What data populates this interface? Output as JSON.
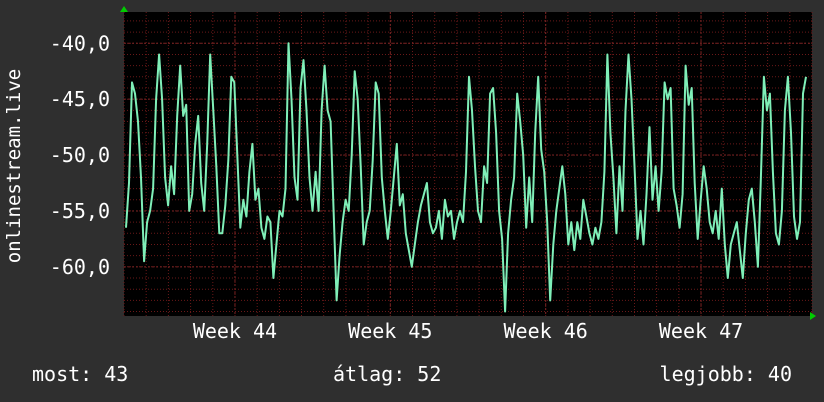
{
  "chart_data": {
    "type": "line",
    "title": "",
    "ylabel": "onlinestream.live",
    "xlabel": "",
    "x_ticks": [
      "Week 44",
      "Week 45",
      "Week 46",
      "Week 47"
    ],
    "y_ticks": [
      "-40,0",
      "-45,0",
      "-50,0",
      "-55,0",
      "-60,0"
    ],
    "y_tick_values": [
      -40,
      -45,
      -50,
      -55,
      -60
    ],
    "ylim": [
      -64.4,
      -37.2
    ],
    "x_tick_positions_days": [
      5,
      12,
      19,
      26
    ],
    "x_range_days": [
      0,
      31
    ],
    "grid": true,
    "colors": {
      "line": "#7fefb8",
      "background": "#000000",
      "grid": "#6a1818",
      "frame": "#2f2f2f",
      "arrow": "#00cc00"
    },
    "series": [
      {
        "name": "",
        "values": [
          -56.5,
          -52.5,
          -43.5,
          -44.5,
          -47,
          -52,
          -59.5,
          -56,
          -55,
          -53,
          -45,
          -41,
          -45,
          -52,
          -54.5,
          -51,
          -53.5,
          -46.5,
          -42,
          -46.5,
          -45.5,
          -55,
          -53.5,
          -49,
          -46.5,
          -52.5,
          -55,
          -49,
          -41,
          -46,
          -51,
          -57,
          -57,
          -54.5,
          -50.5,
          -43,
          -43.5,
          -50,
          -56.5,
          -54,
          -55.5,
          -51.5,
          -49,
          -54,
          -53,
          -56.5,
          -57.5,
          -55.5,
          -56,
          -61,
          -58,
          -55,
          -55.5,
          -53,
          -40,
          -45,
          -52,
          -54,
          -44,
          -41.5,
          -46,
          -52,
          -55,
          -51.5,
          -55,
          -46,
          -42,
          -46,
          -47,
          -55,
          -63,
          -59,
          -56,
          -54,
          -55,
          -50,
          -42.5,
          -45,
          -51,
          -58,
          -56,
          -55,
          -50.5,
          -43.5,
          -44.5,
          -52,
          -55,
          -57.5,
          -55,
          -52,
          -49,
          -54.5,
          -53.5,
          -57,
          -58.5,
          -60,
          -58,
          -56,
          -54.5,
          -53.5,
          -52.5,
          -56,
          -57,
          -56.5,
          -55,
          -57.5,
          -54,
          -55.5,
          -55,
          -57.5,
          -56,
          -55,
          -56,
          -51.5,
          -43,
          -46,
          -51,
          -55,
          -56,
          -51,
          -52.5,
          -44.5,
          -44,
          -48,
          -55,
          -57.5,
          -64,
          -57,
          -54,
          -52,
          -44.5,
          -47,
          -50,
          -56.5,
          -52,
          -56,
          -48,
          -43,
          -49.5,
          -51.5,
          -56,
          -63,
          -58,
          -55,
          -53,
          -51,
          -53.5,
          -58,
          -56,
          -58.5,
          -56,
          -57.5,
          -54,
          -55.5,
          -57,
          -58,
          -56.5,
          -57.5,
          -56,
          -51.5,
          -41,
          -48,
          -52,
          -57,
          -51,
          -55,
          -46,
          -41,
          -45,
          -51,
          -57.5,
          -55,
          -58,
          -53.5,
          -47.5,
          -54,
          -51,
          -55,
          -51.5,
          -43.5,
          -45,
          -44,
          -53,
          -54.5,
          -56.5,
          -53.5,
          -42,
          -45.5,
          -44,
          -52.5,
          -57.5,
          -54,
          -51,
          -53,
          -56,
          -57,
          -55,
          -57.5,
          -53,
          -58,
          -61,
          -58,
          -57,
          -56,
          -58.5,
          -61,
          -57,
          -54,
          -53,
          -56,
          -60,
          -52,
          -43,
          -46,
          -44.5,
          -51.5,
          -57,
          -58,
          -55,
          -46,
          -43,
          -48,
          -55.5,
          -57.5,
          -56,
          -44.5,
          -43
        ]
      }
    ]
  },
  "stats": {
    "current": "most: 43",
    "average": "átlag: 52",
    "best": "legjobb: 40"
  }
}
